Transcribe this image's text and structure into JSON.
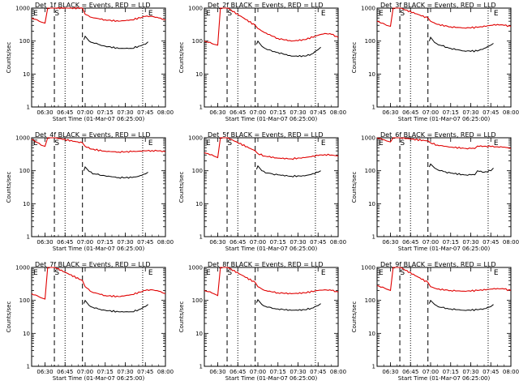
{
  "chart_data": [
    {
      "type": "line",
      "title": "Det_1f BLACK = Events, RED = LLD",
      "xlabel": "Start Time (01-Mar-07 06:25:00)",
      "ylabel": "Counts/sec",
      "x_ticks": [
        "06:30",
        "06:45",
        "07:00",
        "07:15",
        "07:30",
        "07:45",
        "08:00"
      ],
      "y_ticks": [
        "1",
        "10",
        "100",
        "1000"
      ],
      "ylim": [
        1,
        1000
      ],
      "xlim_minutes": [
        -5,
        95
      ],
      "scale_y": "log",
      "markers": [
        {
          "label": "E",
          "x": -5
        },
        {
          "label": "S",
          "x": 11
        },
        {
          "label": "E",
          "x": 81
        }
      ],
      "dashed_lines": [
        12,
        33
      ],
      "dotted_lines": [
        20,
        78
      ],
      "red": {
        "name": "LLD",
        "x": [
          -5,
          2,
          5,
          7,
          8,
          11,
          12,
          12.5,
          33,
          35,
          40,
          50,
          60,
          70,
          80,
          85,
          90,
          95
        ],
        "y": [
          500,
          380,
          350,
          1000,
          1000,
          1000,
          1000,
          1000,
          1000,
          650,
          520,
          440,
          400,
          440,
          560,
          560,
          500,
          440
        ]
      },
      "black": {
        "name": "Events",
        "x": [
          34,
          35,
          38,
          42,
          50,
          60,
          70,
          75,
          80,
          82
        ],
        "y": [
          110,
          140,
          100,
          85,
          70,
          60,
          60,
          70,
          80,
          95
        ]
      }
    },
    {
      "type": "line",
      "title": "Det_2f BLACK = Events, RED = LLD",
      "xlabel": "Start Time (01-Mar-07 06:25:00)",
      "ylabel": "Counts/sec",
      "x_ticks": [
        "06:30",
        "06:45",
        "07:00",
        "07:15",
        "07:30",
        "07:45",
        "08:00"
      ],
      "y_ticks": [
        "1",
        "10",
        "100",
        "1000"
      ],
      "ylim": [
        1,
        1000
      ],
      "xlim_minutes": [
        -5,
        95
      ],
      "scale_y": "log",
      "markers": [
        {
          "label": "E",
          "x": -5
        },
        {
          "label": "S",
          "x": 11
        },
        {
          "label": "E",
          "x": 81
        }
      ],
      "dashed_lines": [
        12,
        33
      ],
      "dotted_lines": [
        20,
        78
      ],
      "red": {
        "name": "LLD",
        "x": [
          -5,
          2,
          5,
          7,
          8,
          11,
          12,
          12.5,
          33,
          35,
          40,
          50,
          60,
          70,
          80,
          85,
          90,
          95
        ],
        "y": [
          100,
          80,
          75,
          1000,
          1000,
          1000,
          1000,
          1000,
          300,
          240,
          180,
          120,
          100,
          110,
          150,
          170,
          160,
          130
        ]
      },
      "black": {
        "name": "Events",
        "x": [
          34,
          35,
          38,
          42,
          50,
          60,
          70,
          75,
          80,
          82
        ],
        "y": [
          80,
          100,
          70,
          55,
          45,
          35,
          35,
          40,
          55,
          65
        ]
      }
    },
    {
      "type": "line",
      "title": "Det_3f BLACK = Events, RED = LLD",
      "xlabel": "Start Time (01-Mar-07 06:25:00)",
      "ylabel": "Counts/sec",
      "x_ticks": [
        "06:30",
        "06:45",
        "07:00",
        "07:15",
        "07:30",
        "07:45",
        "08:00"
      ],
      "y_ticks": [
        "1",
        "10",
        "100",
        "1000"
      ],
      "ylim": [
        1,
        1000
      ],
      "xlim_minutes": [
        -5,
        95
      ],
      "scale_y": "log",
      "markers": [
        {
          "label": "E",
          "x": -5
        },
        {
          "label": "S",
          "x": 11
        },
        {
          "label": "E",
          "x": 81
        }
      ],
      "dashed_lines": [
        12,
        33
      ],
      "dotted_lines": [
        20,
        78
      ],
      "red": {
        "name": "LLD",
        "x": [
          -5,
          2,
          5,
          7,
          8,
          11,
          12,
          12.5,
          33,
          35,
          40,
          50,
          60,
          70,
          80,
          85,
          90,
          95
        ],
        "y": [
          400,
          300,
          280,
          1000,
          1000,
          1000,
          1000,
          1000,
          500,
          400,
          320,
          270,
          250,
          260,
          300,
          320,
          300,
          280
        ]
      },
      "black": {
        "name": "Events",
        "x": [
          34,
          35,
          38,
          42,
          50,
          60,
          70,
          75,
          80,
          82
        ],
        "y": [
          100,
          130,
          90,
          75,
          60,
          50,
          50,
          60,
          75,
          85
        ]
      }
    },
    {
      "type": "line",
      "title": "Det_4f BLACK = Events, RED = LLD",
      "xlabel": "Start Time (01-Mar-07 06:25:00)",
      "ylabel": "Counts/sec",
      "x_ticks": [
        "06:30",
        "06:45",
        "07:00",
        "07:15",
        "07:30",
        "07:45",
        "08:00"
      ],
      "y_ticks": [
        "1",
        "10",
        "100",
        "1000"
      ],
      "ylim": [
        1,
        1000
      ],
      "xlim_minutes": [
        -5,
        95
      ],
      "scale_y": "log",
      "markers": [
        {
          "label": "E",
          "x": -5
        },
        {
          "label": "S",
          "x": 11
        },
        {
          "label": "E",
          "x": 81
        }
      ],
      "dashed_lines": [
        12,
        33
      ],
      "dotted_lines": [
        20,
        78
      ],
      "red": {
        "name": "LLD",
        "x": [
          -5,
          2,
          5,
          7,
          8,
          11,
          12,
          12.5,
          33,
          35,
          40,
          50,
          60,
          70,
          80,
          85,
          90,
          95
        ],
        "y": [
          900,
          600,
          550,
          1000,
          1000,
          1000,
          1000,
          1000,
          700,
          550,
          450,
          390,
          370,
          380,
          400,
          410,
          400,
          380
        ]
      },
      "black": {
        "name": "Events",
        "x": [
          34,
          35,
          38,
          42,
          50,
          60,
          70,
          75,
          80,
          82
        ],
        "y": [
          100,
          130,
          95,
          80,
          70,
          62,
          62,
          68,
          80,
          90
        ]
      }
    },
    {
      "type": "line",
      "title": "Det_5f BLACK = Events, RED = LLD",
      "xlabel": "Start Time (01-Mar-07 06:25:00)",
      "ylabel": "Counts/sec",
      "x_ticks": [
        "06:30",
        "06:45",
        "07:00",
        "07:15",
        "07:30",
        "07:45",
        "08:00"
      ],
      "y_ticks": [
        "1",
        "10",
        "100",
        "1000"
      ],
      "ylim": [
        1,
        1000
      ],
      "xlim_minutes": [
        -5,
        95
      ],
      "scale_y": "log",
      "markers": [
        {
          "label": "E",
          "x": -5
        },
        {
          "label": "S",
          "x": 11
        },
        {
          "label": "E",
          "x": 81
        }
      ],
      "dashed_lines": [
        12,
        33
      ],
      "dotted_lines": [
        20,
        78
      ],
      "red": {
        "name": "LLD",
        "x": [
          -5,
          2,
          5,
          7,
          8,
          11,
          12,
          12.5,
          33,
          35,
          40,
          50,
          60,
          70,
          80,
          85,
          90,
          95
        ],
        "y": [
          350,
          280,
          250,
          1000,
          1000,
          1000,
          1000,
          1000,
          400,
          330,
          280,
          240,
          230,
          250,
          290,
          310,
          300,
          280
        ]
      },
      "black": {
        "name": "Events",
        "x": [
          34,
          35,
          38,
          42,
          50,
          60,
          70,
          75,
          80,
          82
        ],
        "y": [
          110,
          140,
          100,
          85,
          75,
          68,
          70,
          78,
          90,
          100
        ]
      }
    },
    {
      "type": "line",
      "title": "Det_6f BLACK = Events, RED = LLD",
      "xlabel": "Start Time (01-Mar-07 06:25:00)",
      "ylabel": "Counts/sec",
      "x_ticks": [
        "06:30",
        "06:45",
        "07:00",
        "07:15",
        "07:30",
        "07:45",
        "08:00"
      ],
      "y_ticks": [
        "1",
        "10",
        "100",
        "1000"
      ],
      "ylim": [
        1,
        1000
      ],
      "xlim_minutes": [
        -5,
        95
      ],
      "scale_y": "log",
      "markers": [
        {
          "label": "E",
          "x": -5
        },
        {
          "label": "S",
          "x": 11
        },
        {
          "label": "E",
          "x": 81
        }
      ],
      "dashed_lines": [
        12,
        33
      ],
      "dotted_lines": [
        20,
        78
      ],
      "red": {
        "name": "LLD",
        "x": [
          -5,
          2,
          5,
          7,
          8,
          11,
          12,
          12.5,
          33,
          35,
          40,
          50,
          60,
          68,
          70,
          80,
          85,
          90,
          95
        ],
        "y": [
          1000,
          800,
          750,
          1000,
          1000,
          1000,
          1000,
          1000,
          800,
          700,
          600,
          520,
          480,
          470,
          560,
          540,
          530,
          520,
          480
        ]
      },
      "black": {
        "name": "Events",
        "x": [
          34,
          35,
          38,
          42,
          50,
          60,
          68,
          70,
          75,
          80,
          82
        ],
        "y": [
          130,
          160,
          120,
          100,
          85,
          75,
          75,
          100,
          90,
          100,
          120
        ]
      }
    },
    {
      "type": "line",
      "title": "Det_7f BLACK = Events, RED = LLD",
      "xlabel": "Start Time (01-Mar-07 06:25:00)",
      "ylabel": "Counts/sec",
      "x_ticks": [
        "06:30",
        "06:45",
        "07:00",
        "07:15",
        "07:30",
        "07:45",
        "08:00"
      ],
      "y_ticks": [
        "1",
        "10",
        "100",
        "1000"
      ],
      "ylim": [
        1,
        1000
      ],
      "xlim_minutes": [
        -5,
        95
      ],
      "scale_y": "log",
      "markers": [
        {
          "label": "E",
          "x": -5
        },
        {
          "label": "S",
          "x": 11
        },
        {
          "label": "E",
          "x": 81
        }
      ],
      "dashed_lines": [
        12,
        33
      ],
      "dotted_lines": [
        20,
        78
      ],
      "red": {
        "name": "LLD",
        "x": [
          -5,
          2,
          5,
          7,
          8,
          11,
          12,
          12.5,
          33,
          35,
          40,
          50,
          60,
          70,
          80,
          85,
          90,
          95
        ],
        "y": [
          160,
          120,
          110,
          1000,
          1000,
          1000,
          1000,
          1000,
          400,
          260,
          180,
          140,
          130,
          150,
          200,
          210,
          190,
          160
        ]
      },
      "black": {
        "name": "Events",
        "x": [
          34,
          35,
          38,
          42,
          50,
          60,
          70,
          75,
          80,
          82
        ],
        "y": [
          80,
          100,
          70,
          58,
          50,
          45,
          45,
          52,
          65,
          75
        ]
      }
    },
    {
      "type": "line",
      "title": "Det_8f BLACK = Events, RED = LLD",
      "xlabel": "Start Time (01-Mar-07 06:25:00)",
      "ylabel": "Counts/sec",
      "x_ticks": [
        "06:30",
        "06:45",
        "07:00",
        "07:15",
        "07:30",
        "07:45",
        "08:00"
      ],
      "y_ticks": [
        "1",
        "10",
        "100",
        "1000"
      ],
      "ylim": [
        1,
        1000
      ],
      "xlim_minutes": [
        -5,
        95
      ],
      "scale_y": "log",
      "markers": [
        {
          "label": "E",
          "x": -5
        },
        {
          "label": "S",
          "x": 11
        },
        {
          "label": "E",
          "x": 81
        }
      ],
      "dashed_lines": [
        12,
        33
      ],
      "dotted_lines": [
        20,
        78
      ],
      "red": {
        "name": "LLD",
        "x": [
          -5,
          2,
          5,
          7,
          8,
          11,
          12,
          12.5,
          33,
          35,
          40,
          50,
          60,
          70,
          80,
          85,
          90,
          95
        ],
        "y": [
          200,
          160,
          140,
          1000,
          1000,
          1000,
          1000,
          1000,
          350,
          260,
          200,
          170,
          160,
          170,
          200,
          210,
          200,
          180
        ]
      },
      "black": {
        "name": "Events",
        "x": [
          34,
          35,
          38,
          42,
          50,
          60,
          70,
          75,
          80,
          82
        ],
        "y": [
          85,
          105,
          75,
          62,
          55,
          50,
          52,
          58,
          70,
          80
        ]
      }
    },
    {
      "type": "line",
      "title": "Det_9f BLACK = Events, RED = LLD",
      "xlabel": "Start Time (01-Mar-07 06:25:00)",
      "ylabel": "Counts/sec",
      "x_ticks": [
        "06:30",
        "06:45",
        "07:00",
        "07:15",
        "07:30",
        "07:45",
        "08:00"
      ],
      "y_ticks": [
        "1",
        "10",
        "100",
        "1000"
      ],
      "ylim": [
        1,
        1000
      ],
      "xlim_minutes": [
        -5,
        95
      ],
      "scale_y": "log",
      "markers": [
        {
          "label": "E",
          "x": -5
        },
        {
          "label": "S",
          "x": 11
        },
        {
          "label": "E",
          "x": 81
        }
      ],
      "dashed_lines": [
        12,
        33
      ],
      "dotted_lines": [
        20,
        78
      ],
      "red": {
        "name": "LLD",
        "x": [
          -5,
          2,
          5,
          7,
          8,
          11,
          12,
          12.5,
          33,
          35,
          40,
          50,
          60,
          70,
          80,
          85,
          90,
          95
        ],
        "y": [
          280,
          220,
          200,
          1000,
          1000,
          1000,
          1000,
          1000,
          350,
          260,
          220,
          200,
          190,
          200,
          220,
          230,
          220,
          200
        ]
      },
      "black": {
        "name": "Events",
        "x": [
          34,
          35,
          38,
          42,
          50,
          60,
          70,
          75,
          80,
          82
        ],
        "y": [
          80,
          100,
          75,
          62,
          55,
          50,
          52,
          56,
          65,
          75
        ]
      }
    }
  ],
  "colors": {
    "events": "#000000",
    "lld": "#e00000",
    "axes": "#000000",
    "background": "#ffffff"
  }
}
